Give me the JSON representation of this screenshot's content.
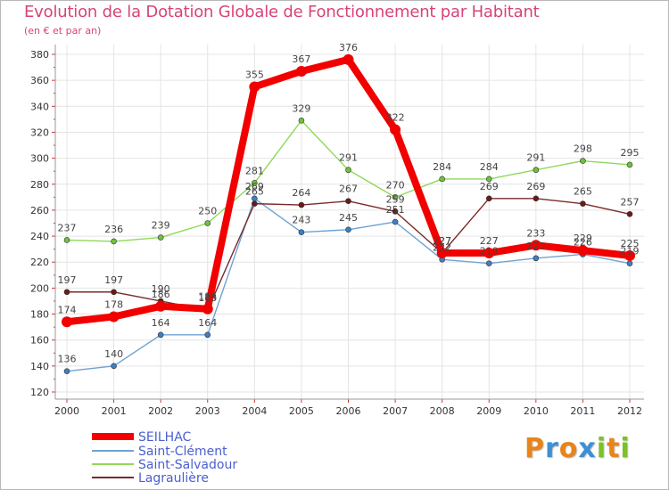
{
  "title": "Evolution de la Dotation Globale de Fonctionnement par Habitant",
  "subtitle": "(en € et par an)",
  "logo": {
    "letters": [
      "P",
      "r",
      "o",
      "x",
      "i",
      "t",
      "i"
    ],
    "colors": [
      "#e8841a",
      "#3d8fd6",
      "#e8841a",
      "#3d8fd6",
      "#7fbf2a",
      "#e8841a",
      "#7fbf2a"
    ]
  },
  "chart_data": {
    "type": "line",
    "x": [
      "2000",
      "2001",
      "2002",
      "2003",
      "2004",
      "2005",
      "2006",
      "2007",
      "2008",
      "2009",
      "2010",
      "2011",
      "2012"
    ],
    "ylim": [
      120,
      380
    ],
    "yticks": [
      120,
      140,
      160,
      180,
      200,
      220,
      240,
      260,
      280,
      300,
      320,
      340,
      360,
      380
    ],
    "grid": true,
    "series": [
      {
        "name": "Saint-Salvadour",
        "color": "#8fd85a",
        "marker": "#6fc23a",
        "values": [
          237,
          236,
          239,
          250,
          281,
          329,
          291,
          270,
          284,
          284,
          291,
          298,
          295
        ]
      },
      {
        "name": "Saint-Clément",
        "color": "#6fa3d0",
        "marker": "#3d7fc4",
        "values": [
          136,
          140,
          164,
          164,
          269,
          243,
          245,
          251,
          222,
          219,
          223,
          226,
          219
        ]
      },
      {
        "name": "Lagraulière",
        "color": "#7a2a2a",
        "marker": "#6a1a1a",
        "values": [
          197,
          197,
          190,
          183,
          265,
          264,
          267,
          259,
          227,
          269,
          269,
          265,
          257
        ]
      },
      {
        "name": "SEILHAC",
        "color": "#f20000",
        "marker": "#f20000",
        "values": [
          174,
          178,
          186,
          184,
          355,
          367,
          376,
          322,
          227,
          227,
          233,
          229,
          225
        ]
      }
    ],
    "legend": [
      "SEILHAC",
      "Saint-Clément",
      "Saint-Salvadour",
      "Lagraulière"
    ],
    "legend_position": "bottom-left"
  }
}
